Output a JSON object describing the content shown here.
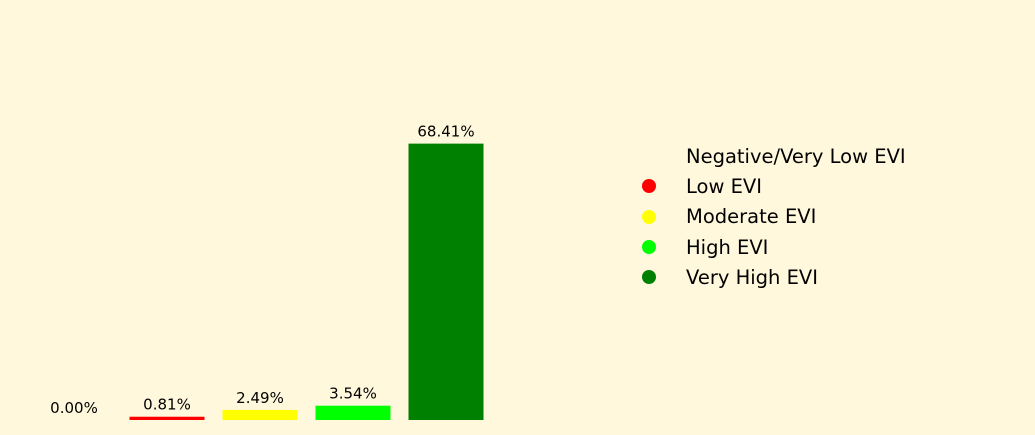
{
  "chart_data": {
    "type": "bar",
    "categories": [
      "Negative/Very Low EVI",
      "Low EVI",
      "Moderate EVI",
      "High EVI",
      "Very High EVI"
    ],
    "values": [
      0.0,
      0.81,
      2.49,
      3.54,
      68.41
    ],
    "value_labels": [
      "0.00%",
      "0.81%",
      "2.49%",
      "3.54%",
      "68.41%"
    ],
    "colors": [
      "#fff8dc",
      "#ff0000",
      "#ffff00",
      "#00ff00",
      "#008000"
    ],
    "ylim": [
      0,
      75
    ],
    "grid": false,
    "axes_visible": false,
    "legend_position": "right",
    "legend": [
      {
        "label": "Negative/Very Low EVI",
        "color": "#fff8dc"
      },
      {
        "label": "Low EVI",
        "color": "#ff0000"
      },
      {
        "label": "Moderate EVI",
        "color": "#ffff00"
      },
      {
        "label": "High EVI",
        "color": "#00ff00"
      },
      {
        "label": "Very High EVI",
        "color": "#008000"
      }
    ],
    "background": "#fff8dc"
  }
}
